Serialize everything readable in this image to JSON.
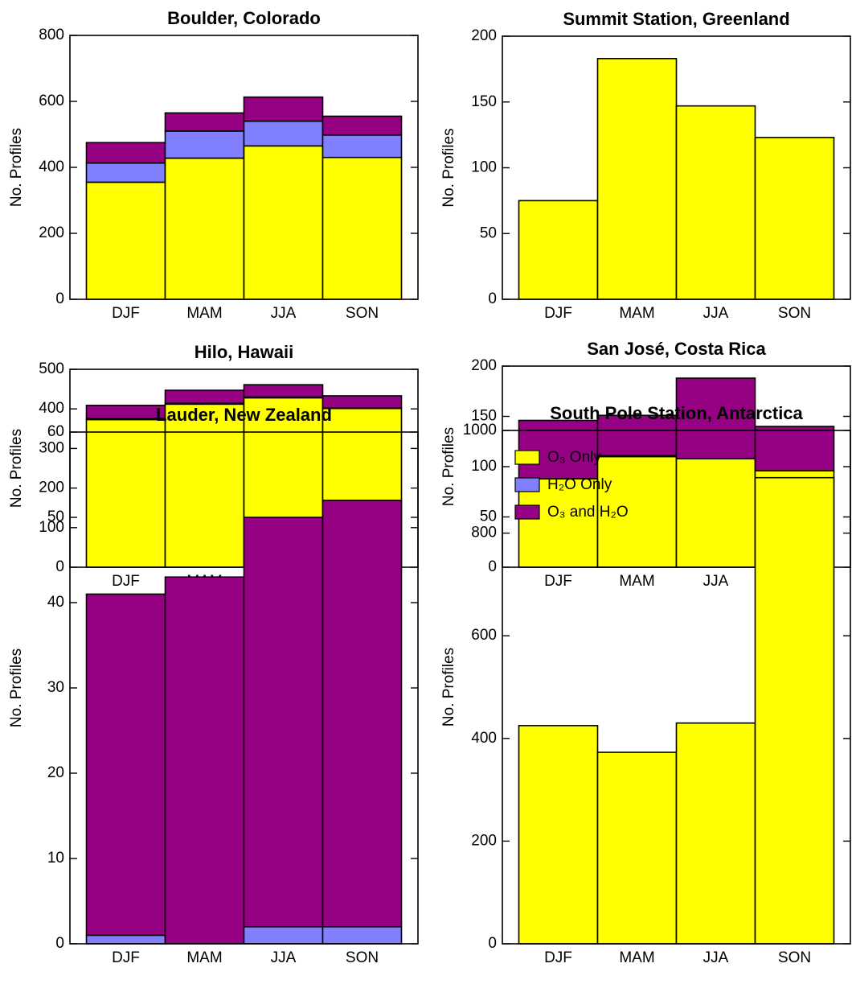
{
  "chart_data": [
    {
      "type": "bar",
      "title": "Boulder, Colorado",
      "ylabel": "No. Profiles",
      "categories": [
        "DJF",
        "MAM",
        "JJA",
        "SON"
      ],
      "series": [
        {
          "color": "#ffff00",
          "values": [
            355,
            428,
            465,
            430
          ]
        },
        {
          "color": "#8080ff",
          "values": [
            58,
            82,
            75,
            68
          ]
        },
        {
          "color": "#960082",
          "values": [
            62,
            55,
            73,
            57
          ]
        }
      ],
      "ylim": [
        0,
        800
      ],
      "yticks": [
        0,
        200,
        400,
        600,
        800
      ]
    },
    {
      "type": "bar",
      "title": "Summit Station, Greenland",
      "ylabel": "No. Profiles",
      "categories": [
        "DJF",
        "MAM",
        "JJA",
        "SON"
      ],
      "series": [
        {
          "color": "#ffff00",
          "values": [
            75,
            183,
            147,
            123
          ]
        }
      ],
      "ylim": [
        0,
        200
      ],
      "yticks": [
        0,
        50,
        100,
        150,
        200
      ]
    },
    {
      "type": "bar",
      "title": "Hilo, Hawaii",
      "ylabel": "No. Profiles",
      "categories": [
        "DJF",
        "MAM",
        "JJA",
        "SON"
      ],
      "series": [
        {
          "color": "#ffff00",
          "values": [
            373,
            412,
            428,
            401
          ]
        },
        {
          "color": "#8080ff",
          "values": [
            3,
            2,
            2,
            1
          ]
        },
        {
          "color": "#960082",
          "values": [
            33,
            33,
            31,
            31
          ]
        }
      ],
      "ylim": [
        0,
        500
      ],
      "yticks": [
        0,
        100,
        200,
        300,
        400,
        500
      ]
    },
    {
      "type": "bar",
      "title": "San José, Costa Rica",
      "ylabel": "No. Profiles",
      "categories": [
        "DJF",
        "MAM",
        "JJA",
        "SON"
      ],
      "series": [
        {
          "color": "#ffff00",
          "values": [
            88,
            110,
            108,
            96
          ]
        },
        {
          "color": "#8080ff",
          "values": [
            0,
            1,
            0,
            0
          ]
        },
        {
          "color": "#960082",
          "values": [
            58,
            40,
            80,
            44
          ]
        }
      ],
      "ylim": [
        0,
        200
      ],
      "yticks": [
        0,
        50,
        100,
        150,
        200
      ]
    },
    {
      "type": "bar",
      "title": "Lauder, New Zealand",
      "ylabel": "No. Profiles",
      "categories": [
        "DJF",
        "MAM",
        "JJA",
        "SON"
      ],
      "series": [
        {
          "color": "#ffff00",
          "values": [
            0,
            0,
            0,
            0
          ]
        },
        {
          "color": "#8080ff",
          "values": [
            1,
            0,
            2,
            2
          ]
        },
        {
          "color": "#960082",
          "values": [
            40,
            43,
            48,
            50
          ]
        }
      ],
      "ylim": [
        0,
        60
      ],
      "yticks": [
        0,
        10,
        20,
        30,
        40,
        50,
        60
      ]
    },
    {
      "type": "bar",
      "title": "South Pole Station, Antarctica",
      "ylabel": "No. Profiles",
      "categories": [
        "DJF",
        "MAM",
        "JJA",
        "SON"
      ],
      "series": [
        {
          "name": "O₃ Only",
          "color": "#ffff00",
          "values": [
            425,
            373,
            430,
            908
          ]
        },
        {
          "name": "H₂O Only",
          "color": "#8080ff",
          "values": [
            0,
            0,
            0,
            0
          ]
        },
        {
          "name": "O₃ and H₂O",
          "color": "#960082",
          "values": [
            0,
            0,
            0,
            0
          ]
        }
      ],
      "ylim": [
        0,
        1000
      ],
      "yticks": [
        0,
        200,
        400,
        600,
        800,
        1000
      ],
      "legend": "upper left"
    }
  ]
}
